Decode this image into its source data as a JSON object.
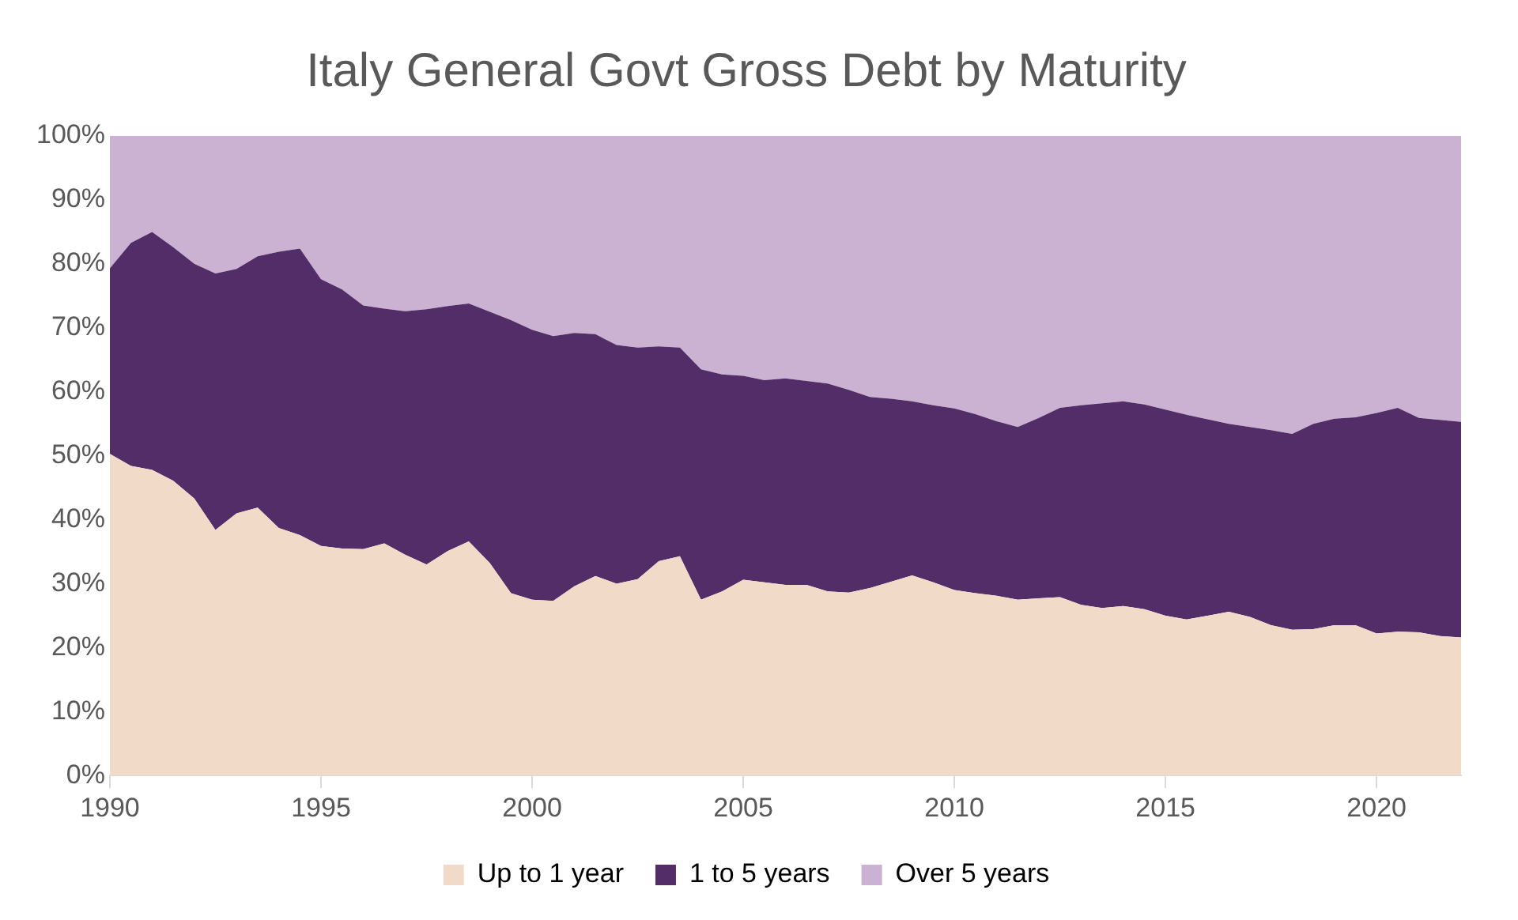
{
  "chart_data": {
    "type": "area",
    "stacked": true,
    "title": "Italy General Govt Gross Debt by Maturity",
    "x": [
      1990,
      1990.5,
      1991,
      1991.5,
      1992,
      1992.5,
      1993,
      1993.5,
      1994,
      1994.5,
      1995,
      1995.5,
      1996,
      1996.5,
      1997,
      1997.5,
      1998,
      1998.5,
      1999,
      1999.5,
      2000,
      2000.5,
      2001,
      2001.5,
      2002,
      2002.5,
      2003,
      2003.5,
      2004,
      2004.5,
      2005,
      2005.5,
      2006,
      2006.5,
      2007,
      2007.5,
      2008,
      2008.5,
      2009,
      2009.5,
      2010,
      2010.5,
      2011,
      2011.5,
      2012,
      2012.5,
      2013,
      2013.5,
      2014,
      2014.5,
      2015,
      2015.5,
      2016,
      2016.5,
      2017,
      2017.5,
      2018,
      2018.5,
      2019,
      2019.5,
      2020,
      2020.5,
      2021,
      2021.5,
      2022
    ],
    "series": [
      {
        "name": "Up to 1 year",
        "color": "#f2dac8",
        "values": [
          50.3,
          48.4,
          47.8,
          46.1,
          43.3,
          38.4,
          41.0,
          41.9,
          38.7,
          37.6,
          35.9,
          35.5,
          35.4,
          36.3,
          34.5,
          33.0,
          35.1,
          36.6,
          33.2,
          28.5,
          27.5,
          27.3,
          29.6,
          31.2,
          30.0,
          30.7,
          33.5,
          34.3,
          27.5,
          28.8,
          30.6,
          30.2,
          29.8,
          29.8,
          28.8,
          28.6,
          29.3,
          30.3,
          31.3,
          30.2,
          29.0,
          28.5,
          28.1,
          27.5,
          27.7,
          27.9,
          26.7,
          26.2,
          26.5,
          26.0,
          25.0,
          24.4,
          25.0,
          25.6,
          24.8,
          23.5,
          22.8,
          22.9,
          23.5,
          23.5,
          22.2,
          22.5,
          22.4,
          21.8,
          21.6
        ]
      },
      {
        "name": "1 to 5 years",
        "color": "#532d67",
        "values": [
          29.0,
          34.9,
          37.2,
          36.5,
          36.7,
          40.1,
          38.2,
          39.3,
          43.2,
          44.8,
          41.7,
          40.5,
          38.1,
          36.7,
          38.1,
          39.9,
          38.3,
          37.2,
          39.3,
          42.7,
          42.2,
          41.4,
          39.6,
          37.8,
          37.3,
          36.2,
          33.6,
          32.6,
          36.0,
          33.9,
          31.9,
          31.6,
          32.3,
          31.9,
          32.5,
          31.7,
          29.9,
          28.6,
          27.2,
          27.7,
          28.4,
          28.0,
          27.3,
          27.0,
          28.2,
          29.6,
          31.2,
          32.0,
          32.0,
          32.0,
          32.2,
          32.0,
          30.7,
          29.4,
          29.7,
          30.5,
          30.6,
          32.1,
          32.3,
          32.5,
          34.5,
          35.0,
          33.5,
          33.8,
          33.7
        ]
      },
      {
        "name": "Over 5 years",
        "color": "#cbb1d2",
        "values": [
          20.7,
          16.7,
          15.0,
          17.4,
          20.0,
          21.5,
          20.8,
          18.8,
          18.1,
          17.6,
          22.4,
          24.0,
          26.5,
          27.0,
          27.4,
          27.1,
          26.6,
          26.2,
          27.5,
          28.8,
          30.3,
          31.3,
          30.8,
          31.0,
          32.7,
          33.1,
          32.9,
          33.1,
          36.5,
          37.3,
          37.5,
          38.2,
          37.9,
          38.3,
          38.7,
          39.7,
          40.8,
          41.1,
          41.5,
          42.1,
          42.6,
          43.5,
          44.6,
          45.5,
          44.1,
          42.5,
          42.1,
          41.8,
          41.5,
          42.0,
          42.8,
          43.6,
          44.3,
          45.0,
          45.5,
          46.0,
          46.6,
          45.0,
          44.2,
          44.0,
          43.3,
          42.5,
          44.1,
          44.4,
          44.7
        ]
      }
    ],
    "xlim": [
      1990,
      2022
    ],
    "xticks": [
      1990,
      1995,
      2000,
      2005,
      2010,
      2015,
      2020
    ],
    "ylim": [
      0,
      100
    ],
    "yticks": [
      {
        "value": 0,
        "label": "0%"
      },
      {
        "value": 10,
        "label": "10%"
      },
      {
        "value": 20,
        "label": "20%"
      },
      {
        "value": 30,
        "label": "30%"
      },
      {
        "value": 40,
        "label": "40%"
      },
      {
        "value": 50,
        "label": "50%"
      },
      {
        "value": 60,
        "label": "60%"
      },
      {
        "value": 70,
        "label": "70%"
      },
      {
        "value": 80,
        "label": "80%"
      },
      {
        "value": 90,
        "label": "90%"
      },
      {
        "value": 100,
        "label": "100%"
      }
    ],
    "grid": false,
    "legend": "bottom",
    "marker": "none"
  }
}
